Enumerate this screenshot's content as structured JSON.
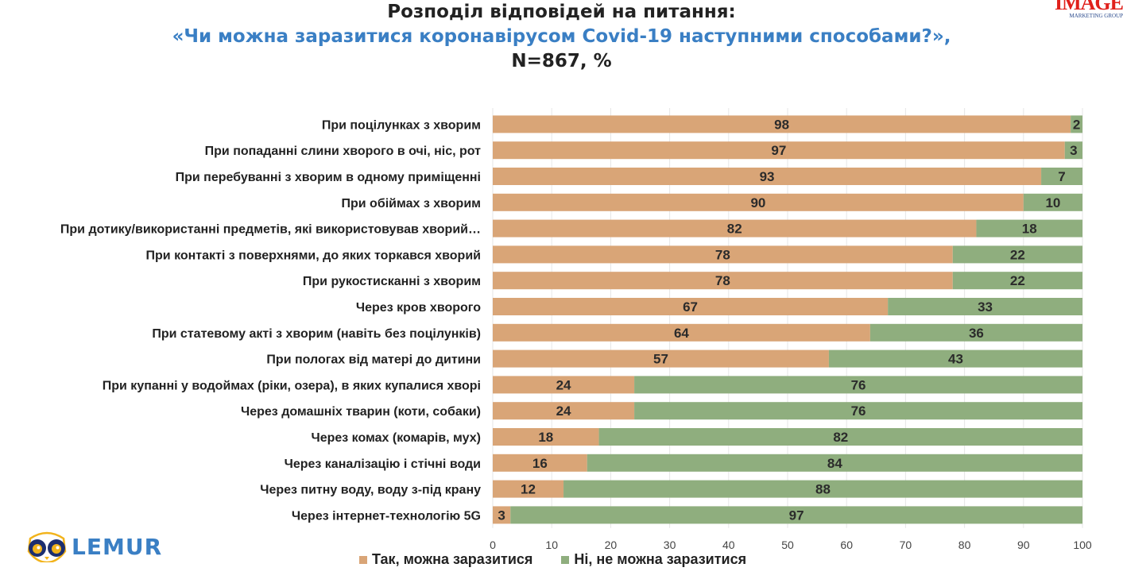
{
  "header": {
    "title_line1": "Розподіл відповідей на питання:",
    "title_line2": "«Чи можна заразитися коронавірусом Covid-19 наступними способами?»,",
    "title_line3": "N=867, %"
  },
  "brand": {
    "name": "IMAGE",
    "tagline": "MARKETING GROUP"
  },
  "logo": {
    "text": "LEMUR",
    "icon": "lemur-face-icon"
  },
  "colors": {
    "yes": "#D9A577",
    "no": "#8FAE7E",
    "title_accent": "#3A7FC4"
  },
  "chart_data": {
    "type": "bar",
    "orientation": "horizontal",
    "stacked": true,
    "title": "Розподіл відповідей на питання: «Чи можна заразитися коронавірусом Covid-19 наступними способами?», N=867, %",
    "categories": [
      "При поцілунках з хворим",
      "При попаданні слини хворого в очі, ніс, рот",
      "При перебуванні з хворим в одному приміщенні",
      "При обіймах з хворим",
      "При дотику/використанні предметів, які використовував хворий…",
      "При контакті з поверхнями, до яких торкався хворий",
      "При рукостисканні з хворим",
      "Через кров хворого",
      "При статевому акті з хворим (навіть без поцілунків)",
      "При пологах від матері до дитини",
      "При купанні у водоймах (ріки, озера), в яких купалися хворі",
      "Через домашніх тварин (коти, собаки)",
      "Через комах (комарів, мух)",
      "Через каналізацію і стічні води",
      "Через питну воду, воду з-під крану",
      "Через інтернет-технологію 5G"
    ],
    "series": [
      {
        "name": "Так, можна заразитися",
        "color": "#D9A577",
        "values": [
          98,
          97,
          93,
          90,
          82,
          78,
          78,
          67,
          64,
          57,
          24,
          24,
          18,
          16,
          12,
          3
        ]
      },
      {
        "name": "Ні, не можна заразитися",
        "color": "#8FAE7E",
        "values": [
          2,
          3,
          7,
          10,
          18,
          22,
          22,
          33,
          36,
          43,
          76,
          76,
          82,
          84,
          88,
          97
        ]
      }
    ],
    "xlim": [
      0,
      100
    ],
    "xticks": [
      0,
      10,
      20,
      30,
      40,
      50,
      60,
      70,
      80,
      90,
      100
    ],
    "xlabel": "",
    "ylabel": "",
    "grid": true,
    "legend_position": "bottom"
  }
}
